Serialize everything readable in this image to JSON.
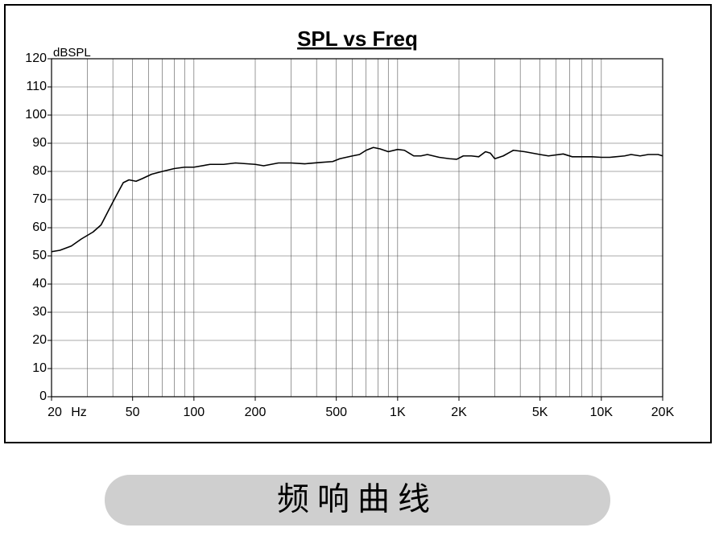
{
  "chart_data": {
    "type": "line",
    "title": "SPL vs Freq",
    "y_label": "dBSPL",
    "x_unit": "Hz",
    "log_x": true,
    "grid": true,
    "color": "#000000",
    "x": [
      20,
      22,
      25,
      28,
      32,
      35,
      38,
      42,
      45,
      48,
      52,
      56,
      62,
      70,
      80,
      90,
      100,
      120,
      140,
      160,
      200,
      220,
      260,
      300,
      350,
      420,
      480,
      520,
      600,
      650,
      700,
      760,
      820,
      900,
      1000,
      1080,
      1200,
      1300,
      1400,
      1600,
      1800,
      1950,
      2100,
      2300,
      2500,
      2700,
      2850,
      3000,
      3300,
      3700,
      4200,
      5000,
      5500,
      6500,
      7200,
      8000,
      9000,
      10000,
      11000,
      13000,
      14000,
      15500,
      17000,
      19000,
      20000
    ],
    "values": [
      51.5,
      52,
      53.5,
      56,
      58.5,
      61,
      66,
      72,
      76,
      77,
      76.5,
      77.5,
      79,
      80,
      81,
      81.5,
      81.5,
      82.5,
      82.5,
      83,
      82.5,
      82,
      83,
      83,
      82.7,
      83.2,
      83.5,
      84.5,
      85.5,
      86,
      87.5,
      88.5,
      88,
      87,
      87.8,
      87.5,
      85.5,
      85.5,
      86,
      85,
      84.5,
      84.3,
      85.5,
      85.5,
      85.2,
      87,
      86.5,
      84.5,
      85.5,
      87.5,
      87,
      86,
      85.5,
      86.2,
      85.2,
      85.2,
      85.2,
      85,
      85,
      85.5,
      86,
      85.5,
      86,
      86,
      85.5
    ],
    "xlim": [
      20,
      20000
    ],
    "ylim": [
      0,
      120
    ],
    "xticks": [
      20,
      50,
      100,
      200,
      500,
      {
        "value": 1000,
        "label": "1K"
      },
      {
        "value": 2000,
        "label": "2K"
      },
      {
        "value": 5000,
        "label": "5K"
      },
      {
        "value": 10000,
        "label": "10K"
      },
      {
        "value": 20000,
        "label": "20K"
      }
    ],
    "xgrid": [
      20,
      30,
      40,
      50,
      60,
      70,
      80,
      90,
      100,
      200,
      300,
      400,
      500,
      600,
      700,
      800,
      900,
      1000,
      2000,
      3000,
      4000,
      5000,
      6000,
      7000,
      8000,
      9000,
      10000,
      20000
    ],
    "yticks": [
      0,
      10,
      20,
      30,
      40,
      50,
      60,
      70,
      80,
      90,
      100,
      110,
      120
    ]
  },
  "caption": "频响曲线"
}
